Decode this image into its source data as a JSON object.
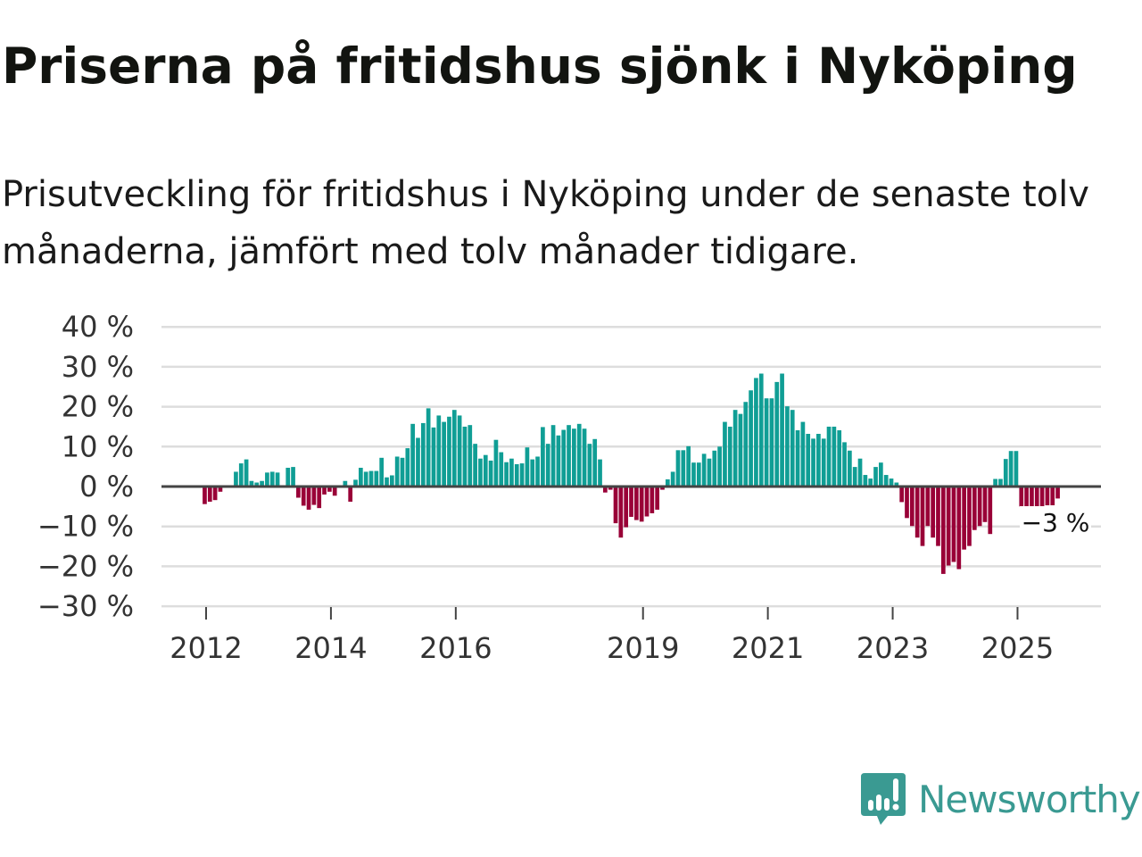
{
  "header": {
    "title": "Priserna på fritidshus sjönk i Nyköping",
    "subtitle": "Prisutveckling för fritidshus i Nyköping under de senaste tolv månaderna, jämfört med tolv månader tidigare."
  },
  "logo": {
    "text": "Newsworthy",
    "icon": "newsworthy-chart-bubble-icon",
    "color": "#3a9a92"
  },
  "chart_data": {
    "type": "bar",
    "title": "Priserna på fritidshus sjönk i Nyköping",
    "xlabel": "",
    "ylabel": "",
    "start": "2012-01",
    "frequency": "monthly",
    "unit": "%",
    "ylim": [
      -30,
      40
    ],
    "yticks": [
      40,
      30,
      20,
      10,
      0,
      -10,
      -20,
      -30
    ],
    "ytick_labels": [
      "40 %",
      "30 %",
      "20 %",
      "10 %",
      "0 %",
      "−10 %",
      "−20 %",
      "−30 %"
    ],
    "xticks": [
      2012,
      2014,
      2016,
      2019,
      2021,
      2023,
      2025
    ],
    "xtick_labels": [
      "2012",
      "2014",
      "2016",
      "2019",
      "2021",
      "2023",
      "2025"
    ],
    "grid": true,
    "colors": {
      "positive": "#109e95",
      "negative": "#990037",
      "zero_line": "#444444",
      "grid": "#dddddd"
    },
    "annotation": {
      "label": "−3 %",
      "month_index": 164
    },
    "values": [
      -4.4,
      -3.8,
      -3.4,
      -1.3,
      0,
      0,
      3.7,
      5.8,
      6.8,
      1.4,
      1.0,
      1.4,
      3.5,
      3.7,
      3.5,
      0,
      4.7,
      4.9,
      -2.8,
      -4.8,
      -5.8,
      -4.6,
      -5.4,
      -2.0,
      -1.3,
      -2.3,
      0,
      1.4,
      -3.8,
      1.7,
      4.7,
      3.7,
      3.9,
      3.9,
      7.2,
      2.3,
      2.8,
      7.5,
      7.2,
      9.6,
      15.7,
      12.2,
      15.9,
      19.6,
      14.8,
      17.8,
      16.2,
      17.5,
      19.2,
      17.8,
      15.0,
      15.4,
      10.7,
      7.0,
      7.9,
      6.5,
      11.7,
      8.6,
      6.1,
      7.0,
      5.6,
      5.8,
      9.8,
      6.8,
      7.5,
      14.9,
      10.7,
      15.4,
      12.8,
      14.2,
      15.4,
      14.5,
      15.7,
      14.5,
      10.7,
      11.9,
      6.8,
      -1.5,
      -0.8,
      -9.2,
      -12.8,
      -10.2,
      -7.6,
      -8.4,
      -8.8,
      -7.5,
      -6.7,
      -5.8,
      -0.8,
      1.8,
      3.7,
      9.1,
      9.1,
      10.1,
      6.0,
      6.0,
      8.2,
      7.0,
      9.0,
      10.0,
      16.2,
      15.0,
      19.2,
      18.2,
      21.2,
      24.1,
      27.2,
      28.3,
      22.1,
      22.1,
      26.2,
      28.3,
      20.1,
      19.2,
      14.1,
      16.2,
      13.2,
      12.0,
      13.2,
      12.0,
      15.0,
      15.0,
      14.1,
      11.1,
      9.0,
      4.9,
      7.0,
      2.9,
      2.0,
      4.9,
      6.0,
      2.9,
      2.0,
      1.0,
      -3.9,
      -7.9,
      -9.9,
      -12.8,
      -14.9,
      -9.9,
      -12.8,
      -14.9,
      -21.9,
      -19.8,
      -18.9,
      -20.7,
      -15.8,
      -14.9,
      -10.9,
      -9.9,
      -8.9,
      -11.9,
      1.9,
      1.9,
      6.9,
      8.9,
      8.9,
      -5.0,
      -5.0,
      -6.9,
      -6.3,
      -5.2,
      -4.7,
      -4.7,
      -3.0
    ]
  }
}
